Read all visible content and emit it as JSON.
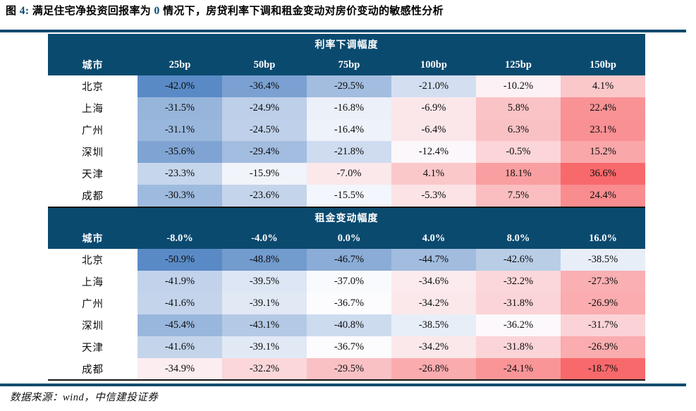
{
  "title": {
    "prefix": "图 ",
    "figure_num": "4:",
    "mid": " 满足住宅净投资回报率为 ",
    "zero": "0",
    "suffix": " 情况下，房贷利率下调和租金变动对房价变动的敏感性分析"
  },
  "footer": "数据来源：wind，中信建投证券",
  "colors": {
    "header_bg": "#0B4A6F",
    "header_text": "#FFFFFF",
    "rule": "#0B4A6F",
    "separator_line": "#141414",
    "scale_min_blue": "#5A8AC6",
    "scale_mid_white": "#FCFCFF",
    "scale_max_red": "#F8696B"
  },
  "chart_data": [
    {
      "type": "heatmap",
      "title": "利率下调幅度",
      "corner_label": "城市",
      "categories": [
        "25bp",
        "50bp",
        "75bp",
        "100bp",
        "125bp",
        "150bp"
      ],
      "rows": [
        {
          "city": "北京",
          "values": [
            -42.0,
            -36.4,
            -29.5,
            -21.0,
            -10.2,
            4.1
          ]
        },
        {
          "city": "上海",
          "values": [
            -31.5,
            -24.9,
            -16.8,
            -6.9,
            5.8,
            22.4
          ]
        },
        {
          "city": "广州",
          "values": [
            -31.1,
            -24.5,
            -16.4,
            -6.4,
            6.3,
            23.1
          ]
        },
        {
          "city": "深圳",
          "values": [
            -35.6,
            -29.4,
            -21.8,
            -12.4,
            -0.5,
            15.2
          ]
        },
        {
          "city": "天津",
          "values": [
            -23.3,
            -15.9,
            -7.0,
            4.1,
            18.1,
            36.6
          ]
        },
        {
          "city": "成都",
          "values": [
            -30.3,
            -23.6,
            -15.5,
            -5.3,
            7.5,
            24.4
          ]
        }
      ],
      "value_format": "percent_1dp",
      "color_scale": "3-color blue-white-red, white at median of table values",
      "legend_position": "none",
      "grid": false
    },
    {
      "type": "heatmap",
      "title": "租金变动幅度",
      "corner_label": "城市",
      "categories": [
        "-8.0%",
        "-4.0%",
        "0.0%",
        "4.0%",
        "8.0%",
        "16.0%"
      ],
      "rows": [
        {
          "city": "北京",
          "values": [
            -50.9,
            -48.8,
            -46.7,
            -44.7,
            -42.6,
            -38.5
          ]
        },
        {
          "city": "上海",
          "values": [
            -41.9,
            -39.5,
            -37.0,
            -34.6,
            -32.2,
            -27.3
          ]
        },
        {
          "city": "广州",
          "values": [
            -41.6,
            -39.1,
            -36.7,
            -34.2,
            -31.8,
            -26.9
          ]
        },
        {
          "city": "深圳",
          "values": [
            -45.4,
            -43.1,
            -40.8,
            -38.5,
            -36.2,
            -31.7
          ]
        },
        {
          "city": "天津",
          "values": [
            -41.6,
            -39.1,
            -36.7,
            -34.2,
            -31.8,
            -26.9
          ]
        },
        {
          "city": "成都",
          "values": [
            -34.9,
            -32.2,
            -29.5,
            -26.8,
            -24.1,
            -18.7
          ]
        }
      ],
      "value_format": "percent_1dp",
      "color_scale": "3-color blue-white-red, white at median of table values",
      "legend_position": "none",
      "grid": false
    }
  ]
}
